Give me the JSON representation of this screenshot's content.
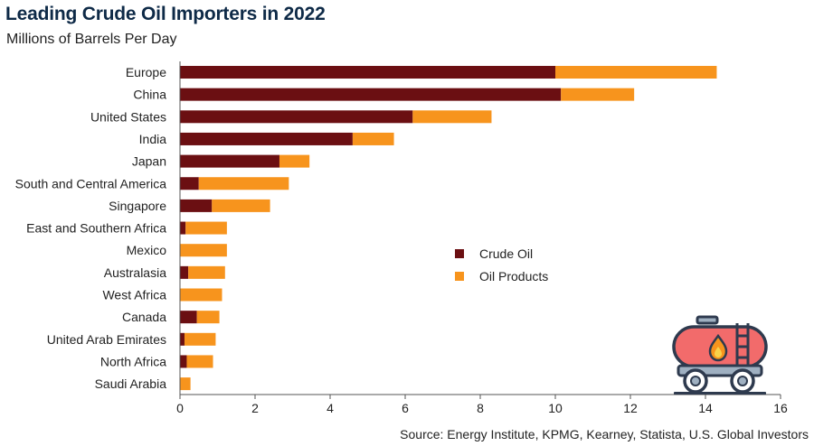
{
  "chart_data": {
    "type": "bar",
    "orientation": "horizontal",
    "stacked": true,
    "title": "Leading Crude Oil Importers in 2022",
    "subtitle": "Millions of Barrels Per Day",
    "source": "Source: Energy Institute, KPMG, Kearney, Statista, U.S. Global Investors",
    "categories": [
      "Europe",
      "China",
      "United States",
      "India",
      "Japan",
      "South and Central America",
      "Singapore",
      "East and Southern Africa",
      "Mexico",
      "Australasia",
      "West Africa",
      "Canada",
      "United Arab Emirates",
      "North Africa",
      "Saudi Arabia"
    ],
    "series": [
      {
        "name": "Crude Oil",
        "color": "#6b0f12",
        "values": [
          10.0,
          10.15,
          6.2,
          4.6,
          2.65,
          0.5,
          0.85,
          0.15,
          0.0,
          0.22,
          0.0,
          0.45,
          0.12,
          0.18,
          0.0
        ]
      },
      {
        "name": "Oil Products",
        "color": "#f7941d",
        "values": [
          4.3,
          1.95,
          2.1,
          1.1,
          0.8,
          2.4,
          1.55,
          1.1,
          1.25,
          0.98,
          1.12,
          0.6,
          0.83,
          0.7,
          0.28
        ]
      }
    ],
    "xlim": [
      0,
      16
    ],
    "xticks": [
      "0",
      "2",
      "4",
      "6",
      "8",
      "10",
      "12",
      "14",
      "16"
    ],
    "grid": false,
    "legend": "center-right"
  }
}
